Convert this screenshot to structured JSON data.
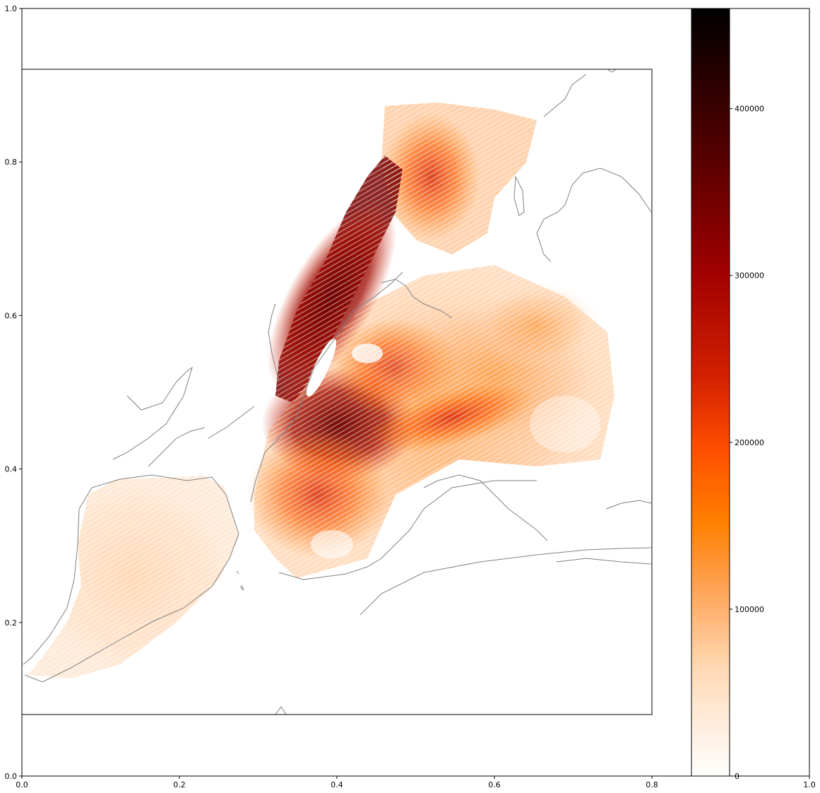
{
  "chart_data": {
    "type": "heatmap",
    "title": "",
    "xlabel": "",
    "ylabel": "",
    "xlim": [
      0,
      1
    ],
    "ylim": [
      0,
      1
    ],
    "x_ticks": [
      "0.0",
      "0.2",
      "0.4",
      "0.6",
      "0.8",
      "1.0"
    ],
    "y_ticks": [
      "0.0",
      "0.2",
      "0.4",
      "0.6",
      "0.8",
      "1.0"
    ],
    "inner_map_bounds": {
      "x": [
        0.0,
        0.8
      ],
      "y": [
        0.08,
        0.92
      ]
    },
    "colorbar": {
      "range": [
        0,
        460000
      ],
      "ticks": [
        "0",
        "100000",
        "200000",
        "300000",
        "400000"
      ],
      "colormap": "gist_heat_r",
      "colors": [
        "#ffffff",
        "#ffc08a",
        "#ff8000",
        "#ff5200",
        "#d42000",
        "#9e0000",
        "#5a0000",
        "#000000"
      ]
    },
    "outline_color": "#808080",
    "grid": false
  }
}
